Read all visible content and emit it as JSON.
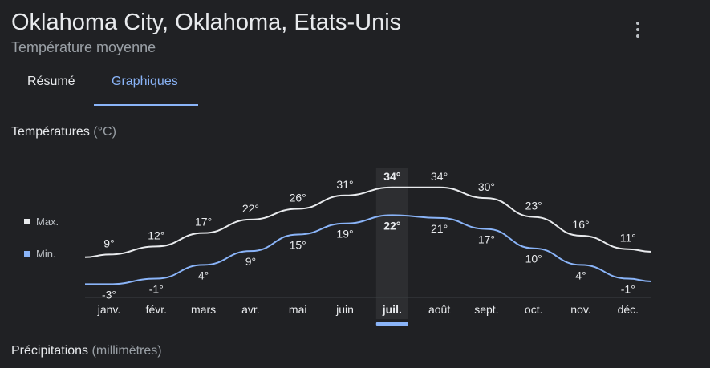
{
  "header": {
    "title": "Oklahoma City, Oklahoma, Etats-Unis",
    "subtitle": "Température moyenne"
  },
  "tabs": [
    {
      "label": "Résumé",
      "active": false
    },
    {
      "label": "Graphiques",
      "active": true
    }
  ],
  "temperatures": {
    "label": "Températures",
    "unit": "(°C)"
  },
  "legend": {
    "max": "Max.",
    "min": "Min."
  },
  "precipitation": {
    "label": "Précipitations",
    "unit": "(millimètres)"
  },
  "colors": {
    "background": "#202124",
    "max_line": "#e8eaed",
    "min_line": "#8ab4f8",
    "accent": "#8ab4f8",
    "highlight_column": "#2d2e31"
  },
  "chart_data": {
    "type": "line",
    "categories": [
      "janv.",
      "févr.",
      "mars",
      "avr.",
      "mai",
      "juin",
      "juil.",
      "août",
      "sept.",
      "oct.",
      "nov.",
      "déc."
    ],
    "selected_index": 6,
    "series": [
      {
        "name": "Max.",
        "values": [
          9,
          12,
          17,
          22,
          26,
          31,
          34,
          34,
          30,
          23,
          16,
          11
        ],
        "labels": [
          "9°",
          "12°",
          "17°",
          "22°",
          "26°",
          "31°",
          "34°",
          "34°",
          "30°",
          "23°",
          "16°",
          "11°"
        ]
      },
      {
        "name": "Min.",
        "values": [
          -3,
          -1,
          4,
          9,
          15,
          19,
          22,
          21,
          17,
          10,
          4,
          -1
        ],
        "labels": [
          "-3°",
          "-1°",
          "4°",
          "9°",
          "15°",
          "19°",
          "22°",
          "21°",
          "17°",
          "10°",
          "4°",
          "-1°"
        ]
      }
    ]
  }
}
